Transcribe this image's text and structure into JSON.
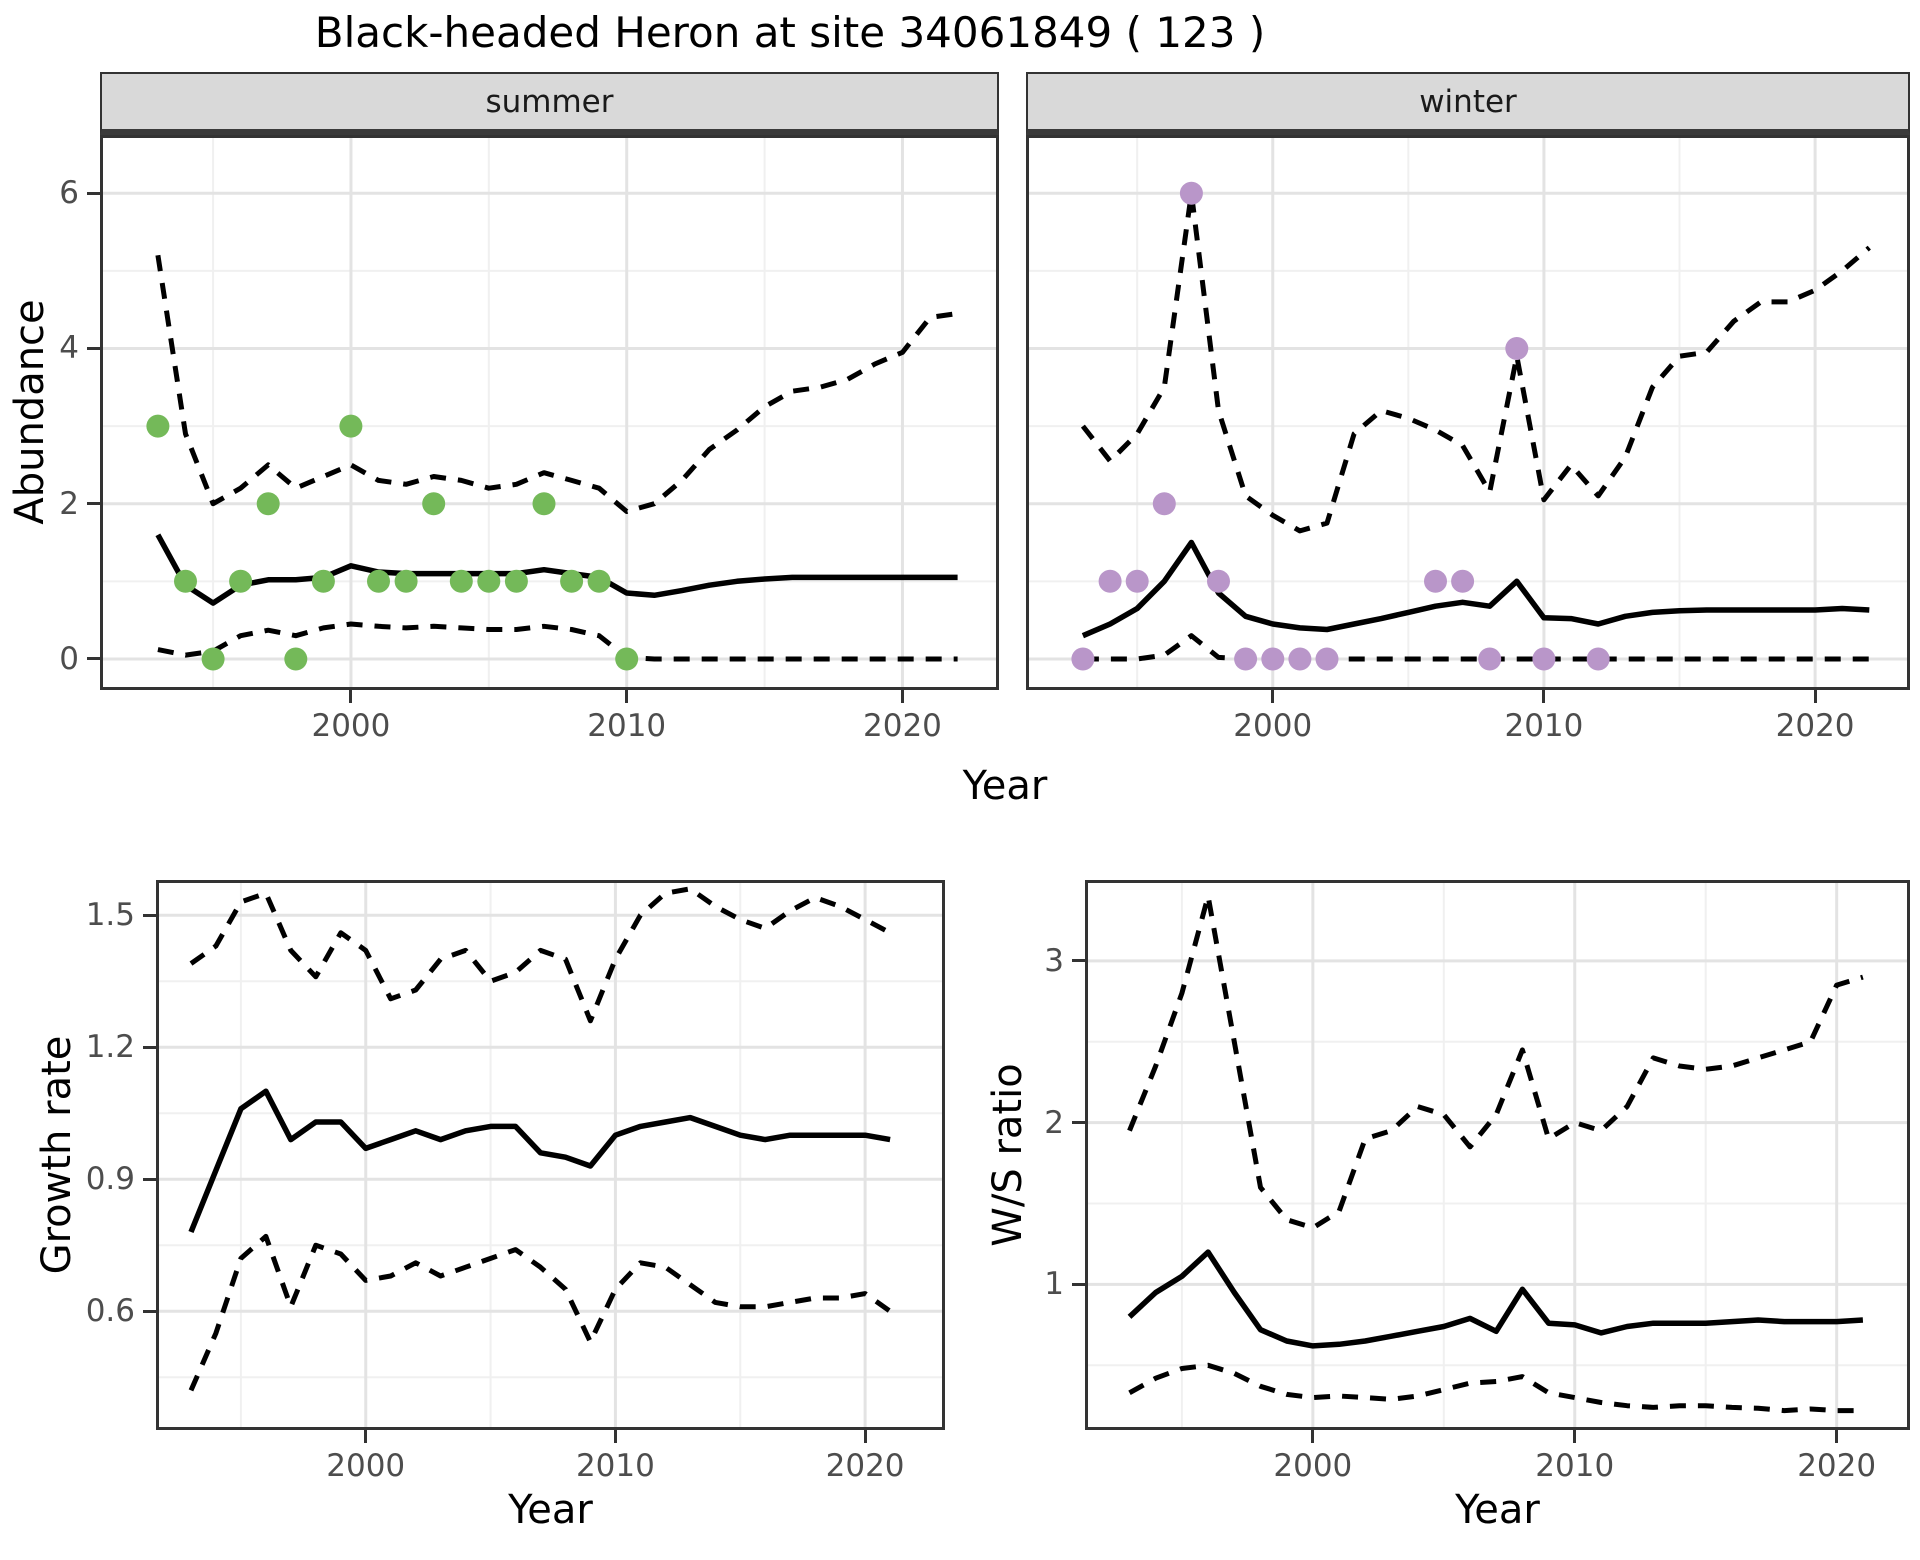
{
  "title": "Black-headed Heron at site 34061849 ( 123 )",
  "facets": {
    "summer": "summer",
    "winter": "winter"
  },
  "axes": {
    "top_x": "Year",
    "top_y": "Abundance",
    "growth_x": "Year",
    "growth_y": "Growth rate",
    "ws_x": "Year",
    "ws_y": "W/S ratio"
  },
  "colors": {
    "summer_points": "#74B959",
    "winter_points": "#B996C9",
    "line": "#000000",
    "strip_bg": "#D9D9D9",
    "grid_major": "#E3E3E3",
    "grid_minor": "#F0F0F0",
    "axis_text": "#4D4D4D",
    "panel_border": "#333333"
  },
  "chart_data": [
    {
      "id": "abundance-summer",
      "type": "line",
      "facet": "summer",
      "xlabel": "Year",
      "ylabel": "Abundance",
      "xlim": [
        1990.9,
        2023.5
      ],
      "ylim": [
        -0.4,
        6.75
      ],
      "xticks": [
        2000,
        2010,
        2020
      ],
      "yticks": [
        0,
        2,
        4,
        6
      ],
      "xminor": [
        1995,
        2005,
        2015
      ],
      "yminor": [
        1,
        3,
        5
      ],
      "show_ytick_labels": true,
      "x": [
        1993,
        1994,
        1995,
        1996,
        1997,
        1998,
        1999,
        2000,
        2001,
        2002,
        2003,
        2004,
        2005,
        2006,
        2007,
        2008,
        2009,
        2010,
        2011,
        2012,
        2013,
        2014,
        2015,
        2016,
        2017,
        2018,
        2019,
        2020,
        2021,
        2022
      ],
      "series": [
        {
          "name": "median",
          "style": "solid",
          "values": [
            1.6,
            0.95,
            0.72,
            0.95,
            1.02,
            1.02,
            1.05,
            1.2,
            1.12,
            1.1,
            1.1,
            1.1,
            1.1,
            1.1,
            1.15,
            1.1,
            1.05,
            0.85,
            0.82,
            0.88,
            0.95,
            1.0,
            1.03,
            1.05,
            1.05,
            1.05,
            1.05,
            1.05,
            1.05,
            1.05
          ]
        },
        {
          "name": "upper_95ci",
          "style": "dashed",
          "values": [
            5.2,
            2.9,
            2.0,
            2.2,
            2.5,
            2.2,
            2.35,
            2.5,
            2.3,
            2.25,
            2.35,
            2.3,
            2.2,
            2.25,
            2.4,
            2.3,
            2.2,
            1.9,
            2.0,
            2.3,
            2.7,
            2.95,
            3.25,
            3.45,
            3.5,
            3.6,
            3.8,
            3.95,
            4.4,
            4.45
          ]
        },
        {
          "name": "lower_95ci",
          "style": "dashed",
          "values": [
            0.12,
            0.05,
            0.1,
            0.3,
            0.37,
            0.3,
            0.4,
            0.45,
            0.42,
            0.4,
            0.42,
            0.4,
            0.38,
            0.38,
            0.42,
            0.38,
            0.3,
            0.02,
            0,
            0,
            0,
            0,
            0,
            0,
            0,
            0,
            0,
            0,
            0,
            0
          ]
        }
      ],
      "points": {
        "name": "observed_counts_summer",
        "color": "#74B959",
        "x": [
          1993,
          1994,
          1995,
          1996,
          1997,
          1998,
          1999,
          2000,
          2001,
          2002,
          2003,
          2004,
          2005,
          2006,
          2007,
          2008,
          2009,
          2010
        ],
        "y": [
          3,
          1,
          0,
          1,
          2,
          0,
          1,
          3,
          1,
          1,
          2,
          1,
          1,
          1,
          2,
          1,
          1,
          0
        ]
      }
    },
    {
      "id": "abundance-winter",
      "type": "line",
      "facet": "winter",
      "xlabel": "Year",
      "ylabel": "Abundance",
      "xlim": [
        1990.9,
        2023.5
      ],
      "ylim": [
        -0.4,
        6.75
      ],
      "xticks": [
        2000,
        2010,
        2020
      ],
      "yticks": [
        0,
        2,
        4,
        6
      ],
      "xminor": [
        1995,
        2005,
        2015
      ],
      "yminor": [
        1,
        3,
        5
      ],
      "show_ytick_labels": false,
      "x": [
        1993,
        1994,
        1995,
        1996,
        1997,
        1998,
        1999,
        2000,
        2001,
        2002,
        2003,
        2004,
        2005,
        2006,
        2007,
        2008,
        2009,
        2010,
        2011,
        2012,
        2013,
        2014,
        2015,
        2016,
        2017,
        2018,
        2019,
        2020,
        2021,
        2022
      ],
      "series": [
        {
          "name": "median",
          "style": "solid",
          "values": [
            0.3,
            0.45,
            0.65,
            1.0,
            1.5,
            0.85,
            0.55,
            0.45,
            0.4,
            0.38,
            0.45,
            0.52,
            0.6,
            0.68,
            0.73,
            0.68,
            1.0,
            0.53,
            0.52,
            0.45,
            0.55,
            0.6,
            0.62,
            0.63,
            0.63,
            0.63,
            0.63,
            0.63,
            0.65,
            0.63
          ]
        },
        {
          "name": "upper_95ci",
          "style": "dashed",
          "values": [
            3.0,
            2.55,
            2.9,
            3.5,
            6.0,
            3.2,
            2.1,
            1.85,
            1.65,
            1.75,
            2.9,
            3.2,
            3.1,
            2.95,
            2.75,
            2.15,
            3.9,
            2.05,
            2.5,
            2.1,
            2.6,
            3.5,
            3.9,
            3.95,
            4.35,
            4.6,
            4.6,
            4.75,
            5.0,
            5.3
          ]
        },
        {
          "name": "lower_95ci",
          "style": "dashed",
          "values": [
            0,
            0,
            0,
            0.05,
            0.3,
            0.02,
            0,
            0,
            0,
            0,
            0,
            0,
            0,
            0,
            0,
            0,
            0,
            0,
            0,
            0,
            0,
            0,
            0,
            0,
            0,
            0,
            0,
            0,
            0,
            0
          ]
        }
      ],
      "points": {
        "name": "observed_counts_winter",
        "color": "#B996C9",
        "x": [
          1993,
          1994,
          1995,
          1996,
          1997,
          1998,
          1999,
          2000,
          2001,
          2002,
          2006,
          2007,
          2008,
          2009,
          2010,
          2012
        ],
        "y": [
          0,
          1,
          1,
          2,
          6,
          1,
          0,
          0,
          0,
          0,
          1,
          1,
          0,
          4,
          0,
          0
        ]
      }
    },
    {
      "id": "growth-rate",
      "type": "line",
      "facet": null,
      "xlabel": "Year",
      "ylabel": "Growth rate",
      "xlim": [
        1991.6,
        2023.2
      ],
      "ylim": [
        0.33,
        1.58
      ],
      "xticks": [
        2000,
        2010,
        2020
      ],
      "yticks": [
        0.6,
        0.9,
        1.2,
        1.5
      ],
      "xminor": [
        1995,
        2005,
        2015
      ],
      "yminor": [
        0.45,
        0.75,
        1.05,
        1.35
      ],
      "show_ytick_labels": true,
      "x": [
        1993,
        1994,
        1995,
        1996,
        1997,
        1998,
        1999,
        2000,
        2001,
        2002,
        2003,
        2004,
        2005,
        2006,
        2007,
        2008,
        2009,
        2010,
        2011,
        2012,
        2013,
        2014,
        2015,
        2016,
        2017,
        2018,
        2019,
        2020,
        2021
      ],
      "series": [
        {
          "name": "median",
          "style": "solid",
          "values": [
            0.78,
            0.92,
            1.06,
            1.1,
            0.99,
            1.03,
            1.03,
            0.97,
            0.99,
            1.01,
            0.99,
            1.01,
            1.02,
            1.02,
            0.96,
            0.95,
            0.93,
            1.0,
            1.02,
            1.03,
            1.04,
            1.02,
            1.0,
            0.99,
            1.0,
            1.0,
            1.0,
            1.0,
            0.99
          ]
        },
        {
          "name": "upper_95ci",
          "style": "dashed",
          "values": [
            1.39,
            1.43,
            1.53,
            1.55,
            1.42,
            1.36,
            1.46,
            1.42,
            1.31,
            1.33,
            1.4,
            1.42,
            1.35,
            1.37,
            1.42,
            1.4,
            1.26,
            1.4,
            1.5,
            1.55,
            1.56,
            1.52,
            1.49,
            1.47,
            1.51,
            1.54,
            1.52,
            1.49,
            1.46
          ]
        },
        {
          "name": "lower_95ci",
          "style": "dashed",
          "values": [
            0.42,
            0.55,
            0.72,
            0.77,
            0.61,
            0.75,
            0.73,
            0.67,
            0.68,
            0.71,
            0.68,
            0.7,
            0.72,
            0.74,
            0.7,
            0.65,
            0.53,
            0.65,
            0.71,
            0.7,
            0.66,
            0.62,
            0.61,
            0.61,
            0.62,
            0.63,
            0.63,
            0.64,
            0.6
          ]
        }
      ],
      "points": null
    },
    {
      "id": "ws-ratio",
      "type": "line",
      "facet": null,
      "xlabel": "Year",
      "ylabel": "W/S ratio",
      "xlim": [
        1991.3,
        2022.8
      ],
      "ylim": [
        0.1,
        3.5
      ],
      "xticks": [
        2000,
        2010,
        2020
      ],
      "yticks": [
        1,
        2,
        3
      ],
      "xminor": [
        1995,
        2005,
        2015
      ],
      "yminor": [
        0.5,
        1.5,
        2.5
      ],
      "show_ytick_labels": true,
      "x": [
        1993,
        1994,
        1995,
        1996,
        1997,
        1998,
        1999,
        2000,
        2001,
        2002,
        2003,
        2004,
        2005,
        2006,
        2007,
        2008,
        2009,
        2010,
        2011,
        2012,
        2013,
        2014,
        2015,
        2016,
        2017,
        2018,
        2019,
        2020,
        2021
      ],
      "series": [
        {
          "name": "median",
          "style": "solid",
          "values": [
            0.8,
            0.95,
            1.05,
            1.2,
            0.95,
            0.72,
            0.65,
            0.62,
            0.63,
            0.65,
            0.68,
            0.71,
            0.74,
            0.79,
            0.71,
            0.97,
            0.76,
            0.75,
            0.7,
            0.74,
            0.76,
            0.76,
            0.76,
            0.77,
            0.78,
            0.77,
            0.77,
            0.77,
            0.78
          ]
        },
        {
          "name": "upper_95ci",
          "style": "dashed",
          "values": [
            1.95,
            2.35,
            2.8,
            3.4,
            2.5,
            1.6,
            1.4,
            1.35,
            1.45,
            1.9,
            1.95,
            2.1,
            2.05,
            1.85,
            2.05,
            2.45,
            1.9,
            2.0,
            1.95,
            2.1,
            2.4,
            2.35,
            2.33,
            2.35,
            2.4,
            2.45,
            2.5,
            2.85,
            2.9
          ]
        },
        {
          "name": "lower_95ci",
          "style": "dashed",
          "values": [
            0.33,
            0.42,
            0.48,
            0.5,
            0.45,
            0.37,
            0.32,
            0.3,
            0.31,
            0.3,
            0.29,
            0.31,
            0.35,
            0.39,
            0.4,
            0.43,
            0.33,
            0.3,
            0.27,
            0.25,
            0.24,
            0.25,
            0.25,
            0.24,
            0.235,
            0.22,
            0.23,
            0.22,
            0.22
          ]
        }
      ],
      "points": null
    }
  ]
}
